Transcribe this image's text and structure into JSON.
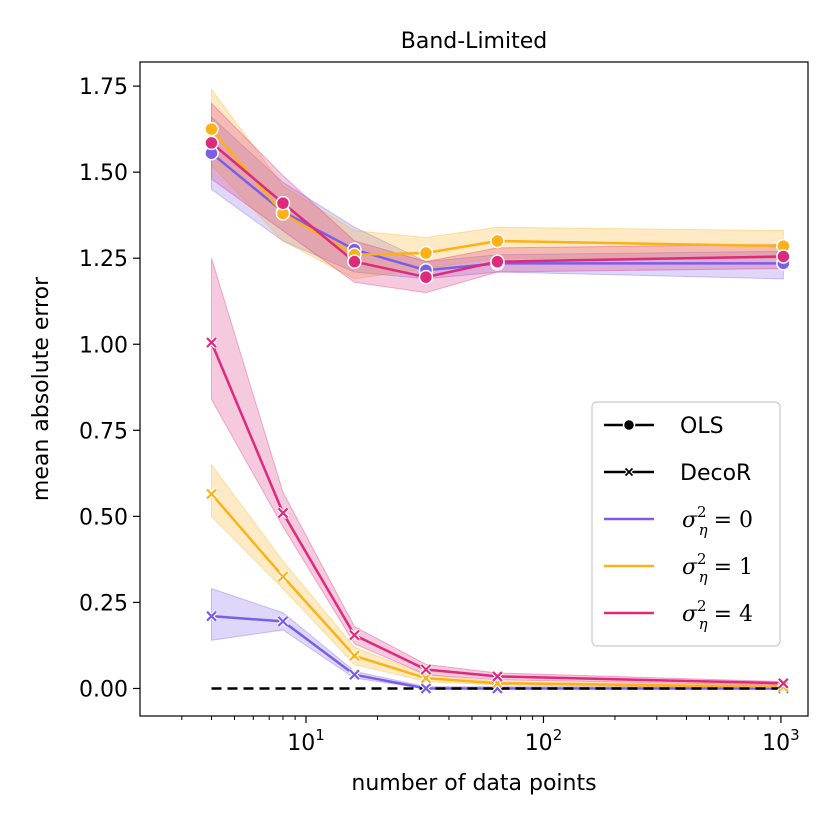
{
  "chart_data": {
    "type": "line",
    "title": "Band-Limited",
    "xlabel": "number of data points",
    "ylabel": "mean absolute error",
    "xscale": "log",
    "xlim": [
      2.0,
      1300
    ],
    "ylim": [
      -0.08,
      1.82
    ],
    "x": [
      4,
      8,
      16,
      32,
      64,
      1024
    ],
    "yticks": [
      0.0,
      0.25,
      0.5,
      0.75,
      1.0,
      1.25,
      1.5,
      1.75
    ],
    "ytick_labels": [
      "0.00",
      "0.25",
      "0.50",
      "0.75",
      "1.00",
      "1.25",
      "1.50",
      "1.75"
    ],
    "xticks": [
      {
        "value": 10,
        "base": "10",
        "exp": "1"
      },
      {
        "value": 100,
        "base": "10",
        "exp": "2"
      },
      {
        "value": 1000,
        "base": "10",
        "exp": "3"
      }
    ],
    "minor_xticks": [
      3,
      4,
      5,
      6,
      7,
      8,
      9,
      20,
      30,
      40,
      50,
      60,
      70,
      80,
      90,
      200,
      300,
      400,
      500,
      600,
      700,
      800,
      900
    ],
    "legend": {
      "position": "center-right",
      "entries": [
        {
          "label": "OLS",
          "kind": "method",
          "marker": "circle"
        },
        {
          "label": "DecoR",
          "kind": "method",
          "marker": "x"
        },
        {
          "label": "σ",
          "sup": "2",
          "sub": "η",
          "eq": "= 0",
          "kind": "noise",
          "color": "#7b5ee8"
        },
        {
          "label": "σ",
          "sup": "2",
          "sub": "η",
          "eq": "= 1",
          "kind": "noise",
          "color": "#fbb117"
        },
        {
          "label": "σ",
          "sup": "2",
          "sub": "η",
          "eq": "= 4",
          "kind": "noise",
          "color": "#dd2a7b"
        }
      ]
    },
    "series": [
      {
        "name": "OLS σ²=0",
        "method": "OLS",
        "color": "#7b5ee8",
        "values": [
          1.555,
          1.385,
          1.275,
          1.215,
          1.235,
          1.235
        ],
        "lower": [
          1.45,
          1.3,
          1.21,
          1.19,
          1.21,
          1.19
        ],
        "upper": [
          1.66,
          1.47,
          1.34,
          1.24,
          1.26,
          1.27
        ]
      },
      {
        "name": "OLS σ²=1",
        "method": "OLS",
        "color": "#fbb117",
        "values": [
          1.625,
          1.38,
          1.26,
          1.265,
          1.3,
          1.285
        ],
        "lower": [
          1.52,
          1.3,
          1.19,
          1.22,
          1.25,
          1.25
        ],
        "upper": [
          1.74,
          1.46,
          1.33,
          1.31,
          1.34,
          1.33
        ]
      },
      {
        "name": "OLS σ²=4",
        "method": "OLS",
        "color": "#dd2a7b",
        "values": [
          1.585,
          1.41,
          1.24,
          1.195,
          1.24,
          1.255
        ],
        "lower": [
          1.48,
          1.33,
          1.18,
          1.15,
          1.21,
          1.22
        ],
        "upper": [
          1.7,
          1.49,
          1.3,
          1.24,
          1.28,
          1.29
        ]
      },
      {
        "name": "DecoR σ²=0",
        "method": "DecoR",
        "color": "#7b5ee8",
        "values": [
          0.21,
          0.195,
          0.04,
          0.0,
          0.0,
          0.0
        ],
        "lower": [
          0.14,
          0.17,
          0.03,
          0.0,
          0.0,
          0.0
        ],
        "upper": [
          0.29,
          0.22,
          0.05,
          0.005,
          0.005,
          0.005
        ]
      },
      {
        "name": "DecoR σ²=1",
        "method": "DecoR",
        "color": "#fbb117",
        "values": [
          0.565,
          0.325,
          0.095,
          0.03,
          0.015,
          0.005
        ],
        "lower": [
          0.5,
          0.29,
          0.07,
          0.02,
          0.01,
          0.0
        ],
        "upper": [
          0.65,
          0.37,
          0.12,
          0.04,
          0.02,
          0.01
        ]
      },
      {
        "name": "DecoR σ²=4",
        "method": "DecoR",
        "color": "#dd2a7b",
        "values": [
          1.005,
          0.51,
          0.155,
          0.055,
          0.035,
          0.015
        ],
        "lower": [
          0.84,
          0.47,
          0.13,
          0.04,
          0.025,
          0.01
        ],
        "upper": [
          1.25,
          0.57,
          0.18,
          0.07,
          0.045,
          0.02
        ]
      },
      {
        "name": "OLS baseline",
        "method": "baseline",
        "color": "#000000",
        "dashed": true,
        "values": [
          0.0,
          0.0,
          0.0,
          0.0,
          0.0,
          0.0
        ]
      }
    ]
  }
}
